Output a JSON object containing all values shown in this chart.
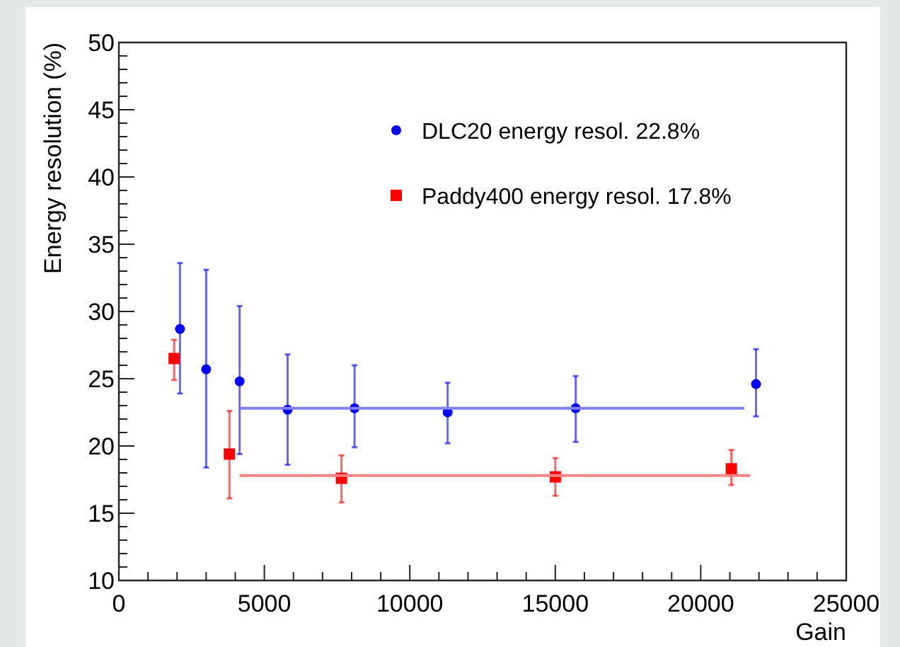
{
  "chart_data": {
    "type": "scatter",
    "xlabel": "Gain",
    "ylabel": "Energy resolution (%)",
    "xlim": [
      0,
      25000
    ],
    "ylim": [
      10,
      50
    ],
    "xticks": [
      0,
      {
        "value": 1000,
        "label": null
      },
      {
        "value": 2000,
        "label": null
      },
      {
        "value": 3000,
        "label": null
      },
      {
        "value": 4000,
        "label": null
      },
      5000,
      {
        "value": 6000,
        "label": null
      },
      {
        "value": 7000,
        "label": null
      },
      {
        "value": 8000,
        "label": null
      },
      {
        "value": 9000,
        "label": null
      },
      10000,
      {
        "value": 11000,
        "label": null
      },
      {
        "value": 12000,
        "label": null
      },
      {
        "value": 13000,
        "label": null
      },
      {
        "value": 14000,
        "label": null
      },
      15000,
      {
        "value": 16000,
        "label": null
      },
      {
        "value": 17000,
        "label": null
      },
      {
        "value": 18000,
        "label": null
      },
      {
        "value": 19000,
        "label": null
      },
      20000,
      {
        "value": 21000,
        "label": null
      },
      {
        "value": 22000,
        "label": null
      },
      {
        "value": 23000,
        "label": null
      },
      {
        "value": 24000,
        "label": null
      },
      25000
    ],
    "yticks": [
      10,
      {
        "value": 11,
        "label": null
      },
      {
        "value": 12,
        "label": null
      },
      {
        "value": 13,
        "label": null
      },
      {
        "value": 14,
        "label": null
      },
      15,
      {
        "value": 16,
        "label": null
      },
      {
        "value": 17,
        "label": null
      },
      {
        "value": 18,
        "label": null
      },
      {
        "value": 19,
        "label": null
      },
      20,
      {
        "value": 21,
        "label": null
      },
      {
        "value": 22,
        "label": null
      },
      {
        "value": 23,
        "label": null
      },
      {
        "value": 24,
        "label": null
      },
      25,
      {
        "value": 26,
        "label": null
      },
      {
        "value": 27,
        "label": null
      },
      {
        "value": 28,
        "label": null
      },
      {
        "value": 29,
        "label": null
      },
      30,
      {
        "value": 31,
        "label": null
      },
      {
        "value": 32,
        "label": null
      },
      {
        "value": 33,
        "label": null
      },
      {
        "value": 34,
        "label": null
      },
      35,
      {
        "value": 36,
        "label": null
      },
      {
        "value": 37,
        "label": null
      },
      {
        "value": 38,
        "label": null
      },
      {
        "value": 39,
        "label": null
      },
      40,
      {
        "value": 41,
        "label": null
      },
      {
        "value": 42,
        "label": null
      },
      {
        "value": 43,
        "label": null
      },
      {
        "value": 44,
        "label": null
      },
      45,
      {
        "value": 46,
        "label": null
      },
      {
        "value": 47,
        "label": null
      },
      {
        "value": 48,
        "label": null
      },
      {
        "value": 49,
        "label": null
      },
      50
    ],
    "grid": false,
    "legend": "top right",
    "series": [
      {
        "name": "DLC20 energy resol. 22.8%",
        "color": "#0000ff",
        "marker": "circle",
        "x": [
          2100,
          3000,
          4150,
          5800,
          8100,
          11300,
          15700,
          21900
        ],
        "values": [
          28.7,
          25.7,
          24.8,
          22.7,
          22.8,
          22.5,
          22.8,
          24.6
        ],
        "errors": [
          [
            23.9,
            33.6
          ],
          [
            18.4,
            33.1
          ],
          [
            19.4,
            30.4
          ],
          [
            18.6,
            26.8
          ],
          [
            19.9,
            26.0
          ],
          [
            20.2,
            24.7
          ],
          [
            20.3,
            25.2
          ],
          [
            22.2,
            27.2
          ]
        ]
      },
      {
        "name": "Paddy400 energy resol. 17.8%",
        "color": "#ff0000",
        "marker": "square",
        "x": [
          1900,
          3800,
          7650,
          15000,
          21050
        ],
        "values": [
          26.5,
          19.4,
          17.6,
          17.7,
          18.3
        ],
        "errors": [
          [
            24.9,
            27.9
          ],
          [
            16.1,
            22.6
          ],
          [
            15.8,
            19.3
          ],
          [
            16.3,
            19.1
          ],
          [
            17.1,
            19.7
          ]
        ]
      },
      {
        "type": "line",
        "color": "#8080ff",
        "x": [
          4150,
          21500
        ],
        "values": [
          22.8,
          22.8
        ]
      },
      {
        "type": "line",
        "color": "#ff8080",
        "x": [
          4150,
          21700
        ],
        "values": [
          17.8,
          17.8
        ]
      }
    ]
  }
}
